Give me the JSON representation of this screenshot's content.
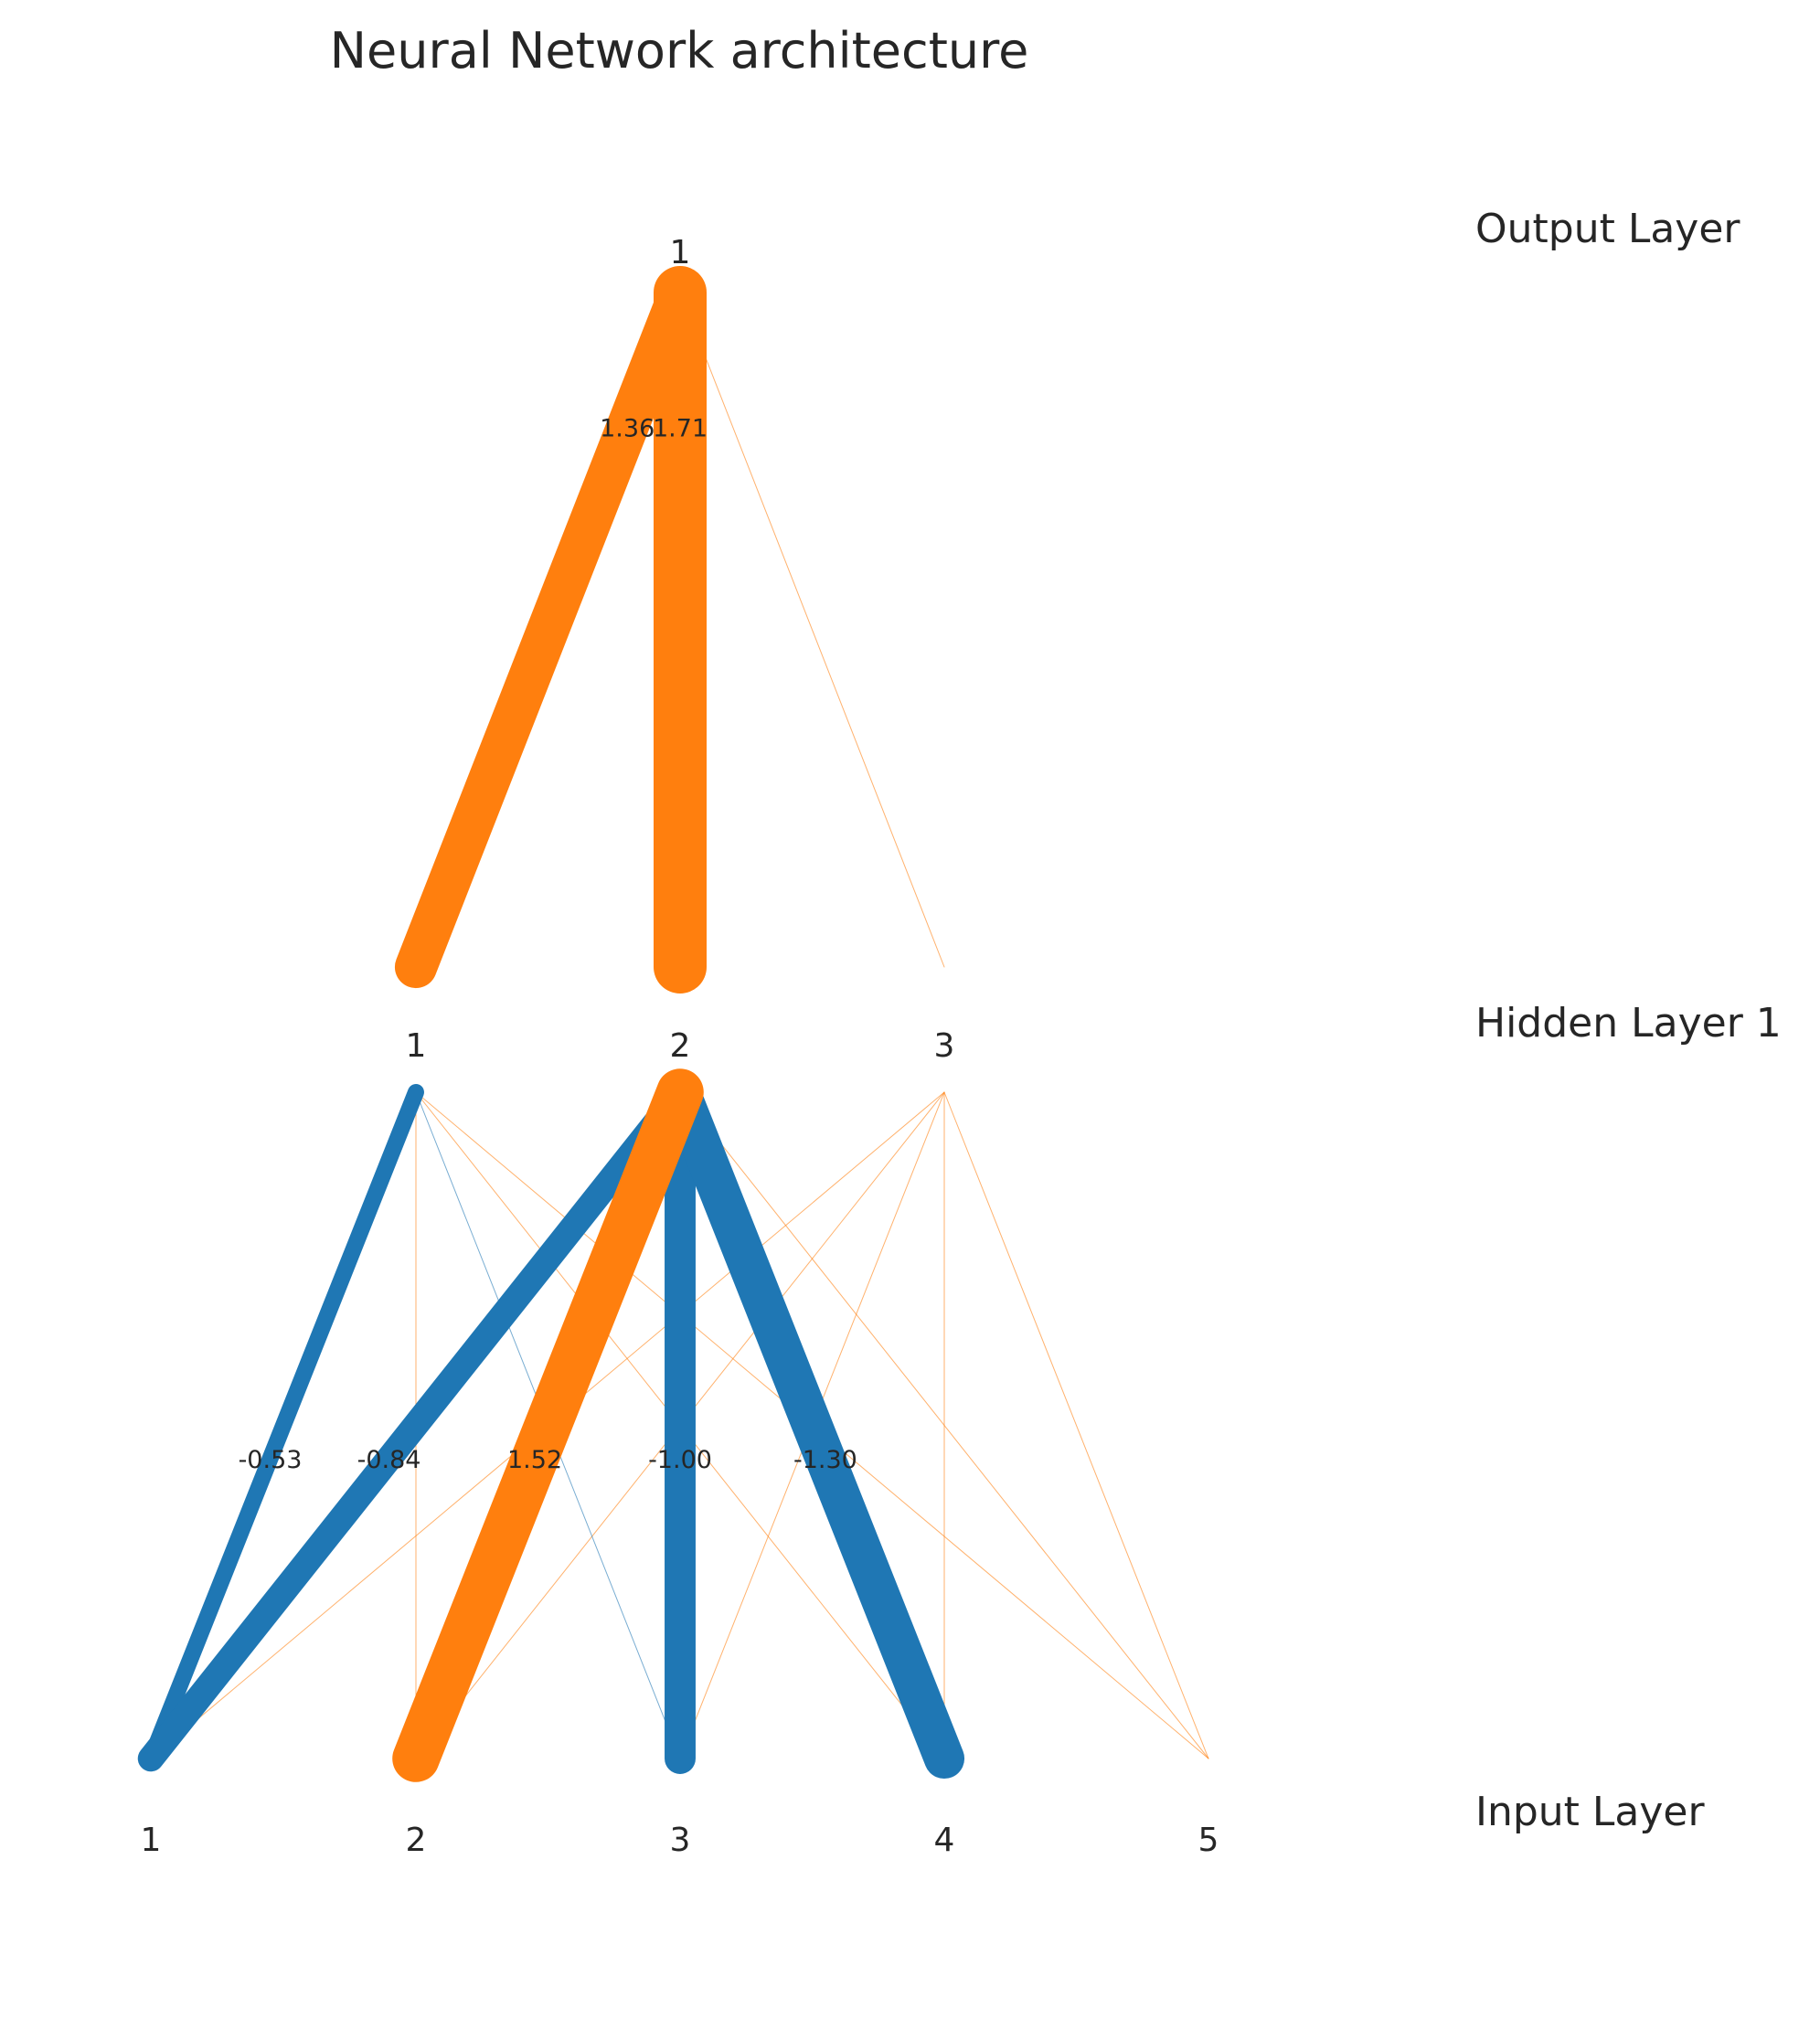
{
  "title": "Neural Network architecture",
  "colors": {
    "positive": "#ff7f0e",
    "negative": "#1f77b4",
    "text": "#262626",
    "background": "#ffffff"
  },
  "layers": [
    {
      "label": "Input Layer",
      "nodes": [
        "1",
        "2",
        "3",
        "4",
        "5"
      ]
    },
    {
      "label": "Hidden Layer 1",
      "nodes": [
        "1",
        "2",
        "3"
      ]
    },
    {
      "label": "Output Layer",
      "nodes": [
        "1"
      ]
    }
  ],
  "connections": [
    {
      "from": [
        0,
        0
      ],
      "to": [
        1,
        0
      ],
      "weight": -0.53,
      "label": "-0.53"
    },
    {
      "from": [
        0,
        0
      ],
      "to": [
        1,
        1
      ],
      "weight": -0.84,
      "label": "-0.84"
    },
    {
      "from": [
        0,
        0
      ],
      "to": [
        1,
        2
      ],
      "weight": 0.02
    },
    {
      "from": [
        0,
        1
      ],
      "to": [
        1,
        0
      ],
      "weight": 0.02
    },
    {
      "from": [
        0,
        1
      ],
      "to": [
        1,
        1
      ],
      "weight": 1.52,
      "label": "1.52"
    },
    {
      "from": [
        0,
        1
      ],
      "to": [
        1,
        2
      ],
      "weight": 0.02
    },
    {
      "from": [
        0,
        2
      ],
      "to": [
        1,
        0
      ],
      "weight": -0.02
    },
    {
      "from": [
        0,
        2
      ],
      "to": [
        1,
        1
      ],
      "weight": -1.0,
      "label": "-1.00"
    },
    {
      "from": [
        0,
        2
      ],
      "to": [
        1,
        2
      ],
      "weight": 0.01
    },
    {
      "from": [
        0,
        3
      ],
      "to": [
        1,
        0
      ],
      "weight": 0.005
    },
    {
      "from": [
        0,
        3
      ],
      "to": [
        1,
        1
      ],
      "weight": -1.3,
      "label": "-1.30"
    },
    {
      "from": [
        0,
        3
      ],
      "to": [
        1,
        2
      ],
      "weight": 0.015
    },
    {
      "from": [
        0,
        4
      ],
      "to": [
        1,
        0
      ],
      "weight": 0.02
    },
    {
      "from": [
        0,
        4
      ],
      "to": [
        1,
        1
      ],
      "weight": 0.03
    },
    {
      "from": [
        0,
        4
      ],
      "to": [
        1,
        2
      ],
      "weight": 0.005
    },
    {
      "from": [
        1,
        0
      ],
      "to": [
        2,
        0
      ],
      "weight": 1.36,
      "label": "1.36"
    },
    {
      "from": [
        1,
        1
      ],
      "to": [
        2,
        0
      ],
      "weight": 1.71,
      "label": "1.71"
    },
    {
      "from": [
        1,
        2
      ],
      "to": [
        2,
        0
      ],
      "weight": 0.02
    }
  ]
}
